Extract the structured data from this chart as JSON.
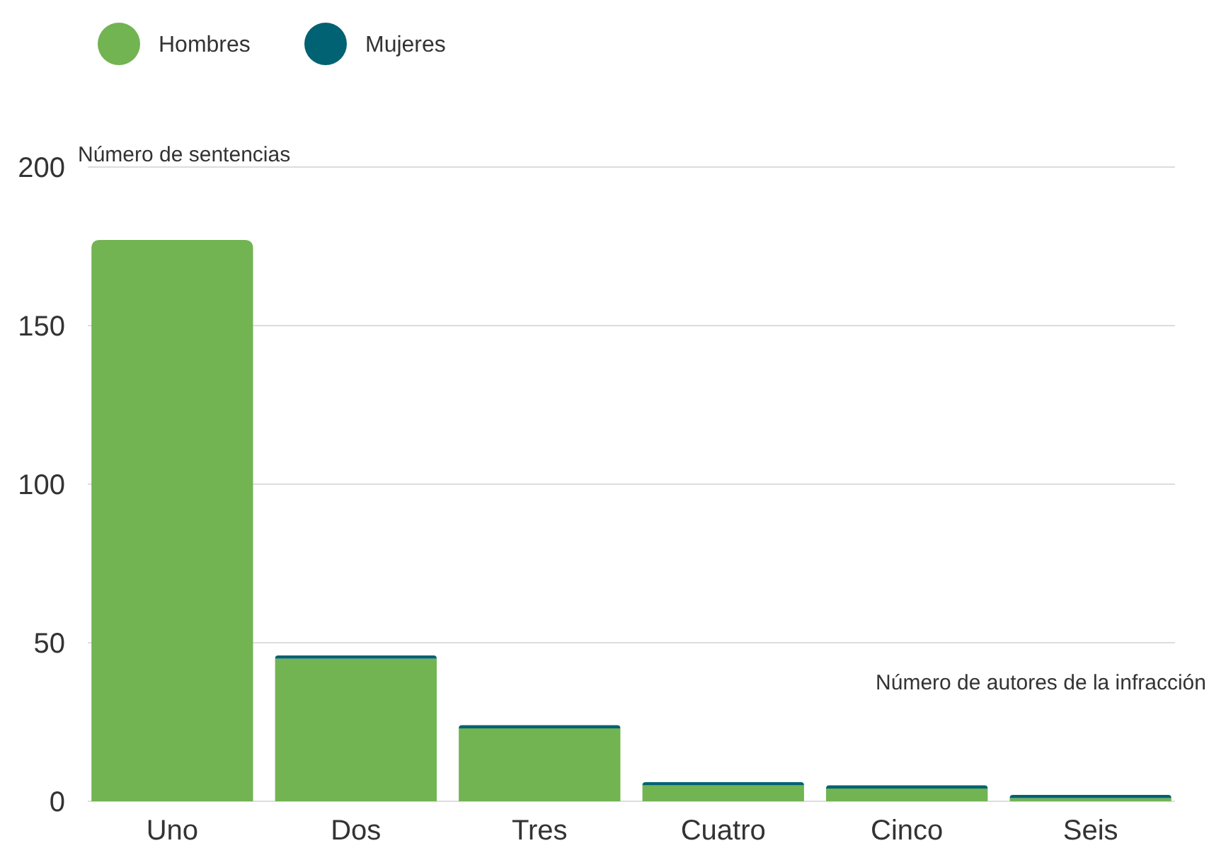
{
  "chart_data": {
    "type": "bar",
    "stacked": true,
    "xlabel": "Número de autores de la infracción",
    "ylabel": "Número de sentencias",
    "categories": [
      "Uno",
      "Dos",
      "Tres",
      "Cuatro",
      "Cinco",
      "Seis"
    ],
    "series": [
      {
        "name": "Hombres",
        "color": "#72b352",
        "values": [
          177,
          45,
          23,
          5,
          4,
          1
        ]
      },
      {
        "name": "Mujeres",
        "color": "#006272",
        "values": [
          0,
          1,
          1,
          1,
          1,
          1
        ]
      }
    ],
    "ylim": [
      0,
      200
    ],
    "yticks": [
      0,
      50,
      100,
      150,
      200
    ],
    "grid": "y",
    "legend": "top left"
  }
}
